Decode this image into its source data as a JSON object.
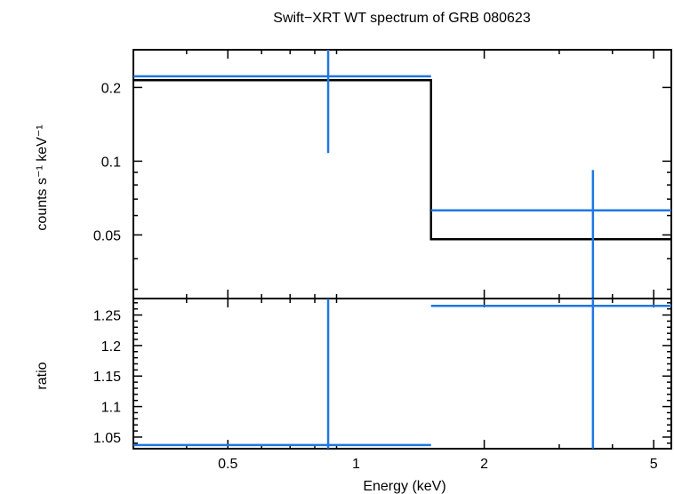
{
  "chart_data": {
    "type": "step-spectrum",
    "title": "Swift−XRT WT spectrum of GRB 080623",
    "xlabel": "Energy (keV)",
    "x_scale": "log",
    "xlim": [
      0.3,
      5.5
    ],
    "x_ticks": [
      {
        "value": 0.5,
        "label": "0.5"
      },
      {
        "value": 1,
        "label": "1"
      },
      {
        "value": 2,
        "label": "2"
      },
      {
        "value": 5,
        "label": "5"
      }
    ],
    "panels": [
      {
        "name": "spectrum",
        "ylabel": "counts s⁻¹ keV⁻¹",
        "y_scale": "log",
        "ylim": [
          0.0275,
          0.285
        ],
        "y_ticks": [
          {
            "value": 0.05,
            "label": "0.05"
          },
          {
            "value": 0.1,
            "label": "0.1"
          },
          {
            "value": 0.2,
            "label": "0.2"
          }
        ],
        "data": [
          {
            "x_lo": 0.3,
            "x_hi": 1.5,
            "x_center": 0.86,
            "y": 0.222,
            "y_err_lo": 0.108,
            "y_err_hi": 0.285
          },
          {
            "x_lo": 1.5,
            "x_hi": 5.5,
            "x_center": 3.6,
            "y": 0.063,
            "y_err_lo": 0.0275,
            "y_err_hi": 0.092
          }
        ],
        "model": [
          {
            "x_lo": 0.3,
            "x_hi": 1.5,
            "y": 0.214
          },
          {
            "x_lo": 1.5,
            "x_hi": 5.5,
            "y": 0.048
          }
        ]
      },
      {
        "name": "ratio",
        "ylabel": "ratio",
        "y_scale": "linear",
        "ylim": [
          1.031,
          1.277
        ],
        "y_ticks": [
          {
            "value": 1.05,
            "label": "1.05"
          },
          {
            "value": 1.1,
            "label": "1.1"
          },
          {
            "value": 1.15,
            "label": "1.15"
          },
          {
            "value": 1.2,
            "label": "1.2"
          },
          {
            "value": 1.25,
            "label": "1.25"
          }
        ],
        "data": [
          {
            "x_lo": 0.3,
            "x_hi": 1.5,
            "x_center": 0.86,
            "y": 1.037,
            "y_err_lo": 1.031,
            "y_err_hi": 1.277
          },
          {
            "x_lo": 1.5,
            "x_hi": 5.5,
            "x_center": 3.6,
            "y": 1.265,
            "y_err_lo": 1.031,
            "y_err_hi": 1.277
          }
        ]
      }
    ],
    "colors": {
      "data": "#1f77e0",
      "model": "#000000",
      "axes": "#000000"
    }
  }
}
